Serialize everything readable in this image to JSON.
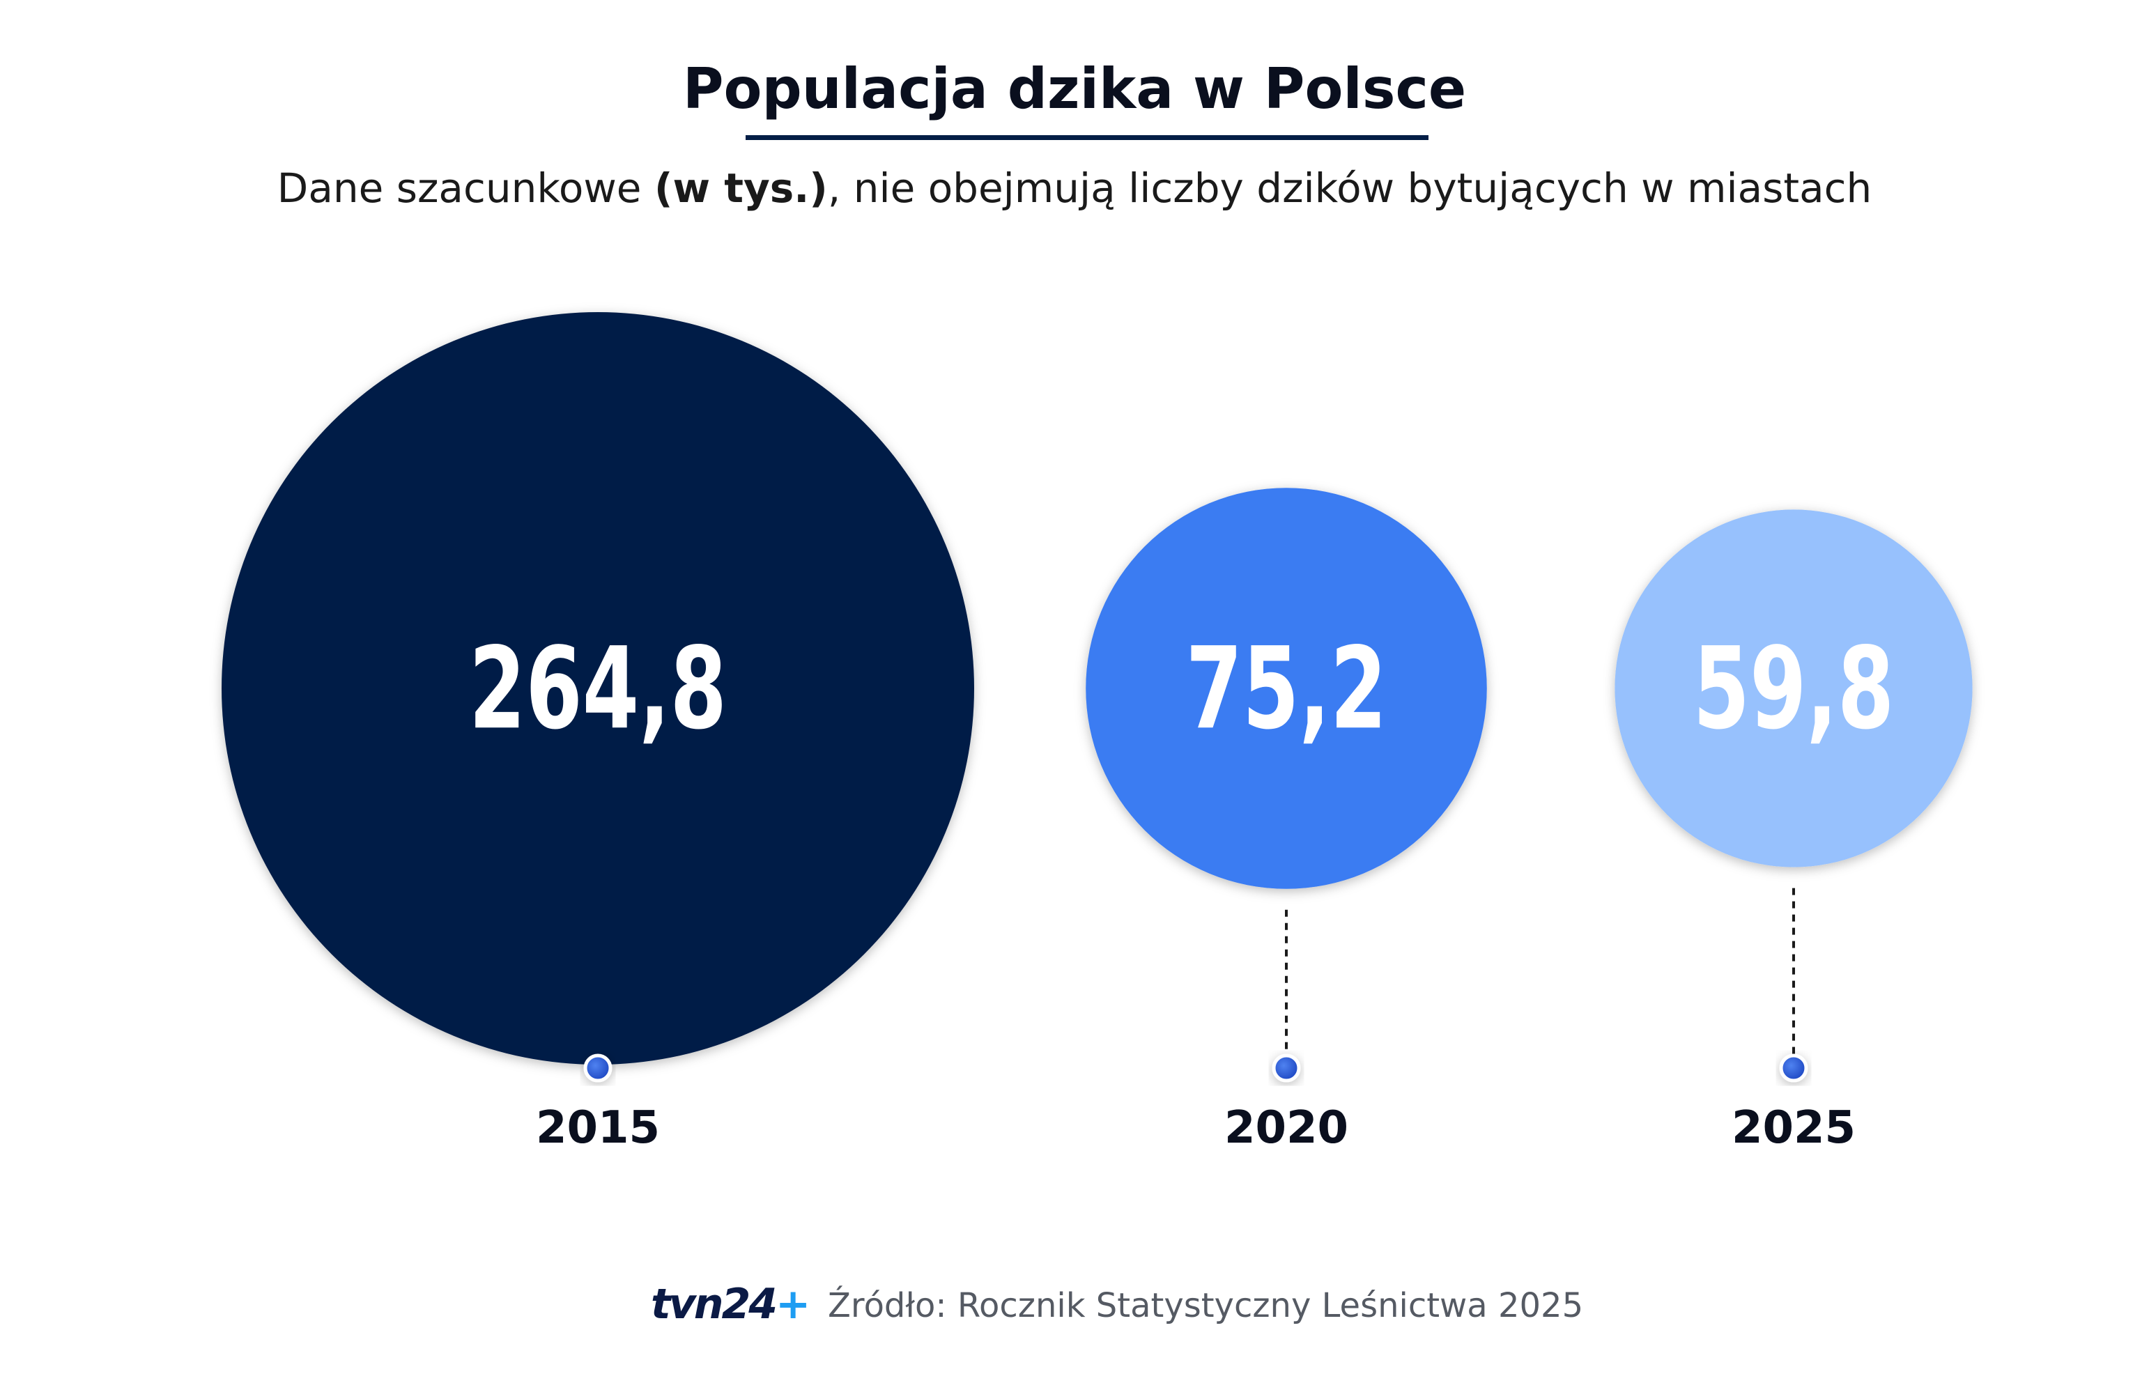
{
  "title": "Populacja dzika w Polsce",
  "subtitle": {
    "prefix": "Dane szacunkowe ",
    "bold": "(w tys.)",
    "suffix": ", nie obejmują liczby dzików bytujących w miastach"
  },
  "chart_data": {
    "type": "bubble",
    "title": "Populacja dzika w Polsce",
    "unit": "tys.",
    "categories": [
      "2015",
      "2020",
      "2025"
    ],
    "values": [
      264.8,
      75.2,
      59.8
    ],
    "value_labels": [
      "264,8",
      "75,2",
      "59,8"
    ],
    "colors": [
      "#041e46",
      "#3a7bf2",
      "#97c1fd"
    ]
  },
  "footer": {
    "logo_text": "tvn24",
    "logo_plus": "+",
    "source": "Źródło: Rocznik Statystyczny Leśnictwa 2025"
  },
  "colors": {
    "accent_dark": "#041e46",
    "dot": "#2f5fd6",
    "logo_plus": "#1e9df2"
  }
}
